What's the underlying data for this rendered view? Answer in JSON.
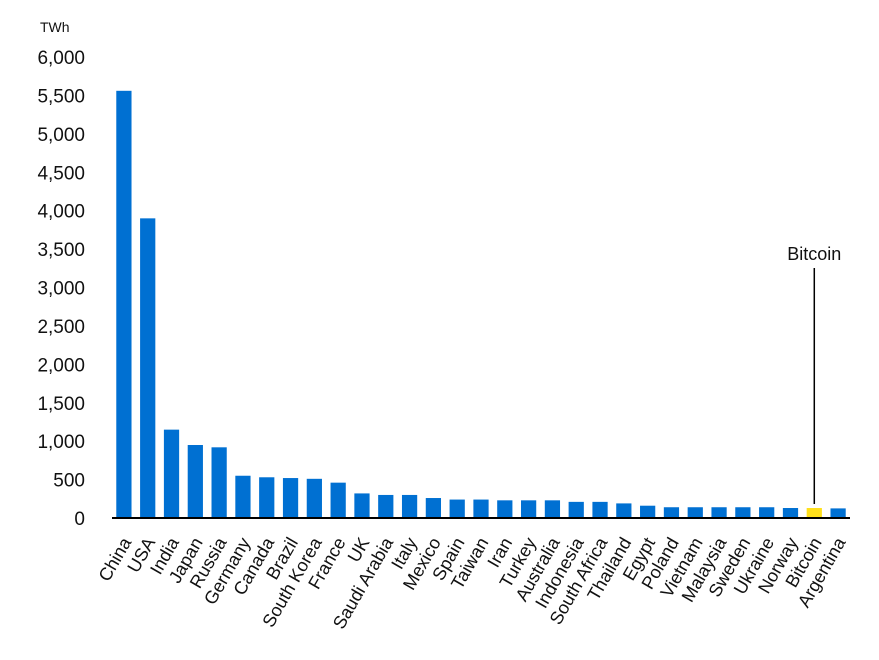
{
  "chart_data": {
    "type": "bar",
    "unit_label": "TWh",
    "categories": [
      "China",
      "USA",
      "India",
      "Japan",
      "Russia",
      "Germany",
      "Canada",
      "Brazil",
      "South Korea",
      "France",
      "UK",
      "Saudi Arabia",
      "Italy",
      "Mexico",
      "Spain",
      "Taiwan",
      "Iran",
      "Turkey",
      "Australia",
      "Indonesia",
      "South Africa",
      "Thailand",
      "Egypt",
      "Poland",
      "Vietnam",
      "Malaysia",
      "Sweden",
      "Ukraine",
      "Norway",
      "Bitcoin",
      "Argentina"
    ],
    "values": [
      5560,
      3900,
      1150,
      950,
      920,
      550,
      530,
      520,
      510,
      460,
      320,
      300,
      300,
      260,
      240,
      240,
      230,
      230,
      230,
      210,
      210,
      190,
      160,
      140,
      140,
      140,
      140,
      140,
      130,
      130,
      125
    ],
    "ylim": [
      0,
      6000
    ],
    "yticks": [
      "0",
      "500",
      "1,000",
      "1,500",
      "2,000",
      "2,500",
      "3,000",
      "3,500",
      "4,000",
      "4,500",
      "5,000",
      "5,500",
      "6,000"
    ],
    "colors": {
      "default": "#0070D2",
      "highlight": "#FFE01B",
      "axis": "#000000"
    },
    "highlight_category": "Bitcoin",
    "annotation": {
      "text": "Bitcoin",
      "target": "Bitcoin"
    },
    "grid": false
  }
}
